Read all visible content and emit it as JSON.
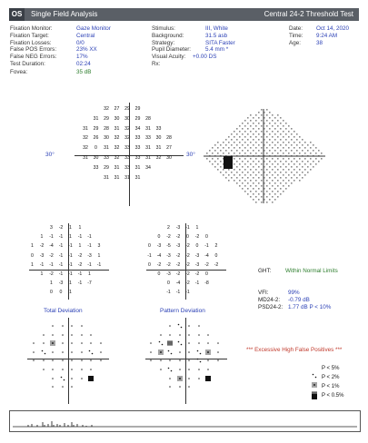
{
  "header": {
    "eye": "OS",
    "analysis": "Single Field Analysis",
    "test": "Central 24-2 Threshold Test"
  },
  "col1": {
    "labels": [
      "Fixation Monitor:",
      "Fixation Target:",
      "Fixation Losses:",
      "False POS Errors:",
      "False NEG Errors:",
      "Test Duration:"
    ],
    "values": [
      "Gaze Monitor",
      "Central",
      "0/0",
      "23% XX",
      "17%",
      "02:24"
    ],
    "fovea_label": "Fovea:",
    "fovea_value": "35 dB"
  },
  "col2": {
    "labels": [
      "Stimulus:",
      "Background:",
      "Strategy:",
      "Pupil Diameter:",
      "Visual Acuity:",
      "Rx:"
    ],
    "values": [
      "III, White",
      "31.5 asb",
      "SITA Faster",
      "5.4 mm *",
      "",
      "+0.00 DS"
    ]
  },
  "col3": {
    "labels": [
      "Date:",
      "Time:",
      "Age:"
    ],
    "values": [
      "Oct 14, 2020",
      "9:24 AM",
      "38"
    ]
  },
  "threshold_rows": [
    [
      "",
      "",
      "",
      "32",
      "27",
      "29",
      "29",
      "",
      "",
      ""
    ],
    [
      "",
      "",
      "31",
      "29",
      "30",
      "30",
      "29",
      "28",
      "",
      ""
    ],
    [
      "",
      "31",
      "29",
      "28",
      "31",
      "32",
      "34",
      "31",
      "33",
      ""
    ],
    [
      "",
      "32",
      "26",
      "30",
      "32",
      "32",
      "33",
      "33",
      "30",
      "28"
    ],
    [
      "",
      "32",
      "0",
      "31",
      "32",
      "33",
      "33",
      "31",
      "31",
      "27"
    ],
    [
      "",
      "31",
      "30",
      "33",
      "32",
      "33",
      "33",
      "31",
      "32",
      "30"
    ],
    [
      "",
      "",
      "33",
      "29",
      "31",
      "33",
      "31",
      "34",
      "",
      ""
    ],
    [
      "",
      "",
      "",
      "31",
      "31",
      "31",
      "31",
      "",
      "",
      ""
    ]
  ],
  "degree_labels": {
    "left": "30°",
    "right": "30°",
    "gray_left": "30°"
  },
  "total_dev_rows": [
    [
      "",
      "",
      "3",
      "-2",
      "1",
      "1",
      "",
      ""
    ],
    [
      "",
      "1",
      "-1",
      "-1",
      "1",
      "-1",
      "-1",
      ""
    ],
    [
      "1",
      "-2",
      "-4",
      "-1",
      "-1",
      "1",
      "-1",
      "3"
    ],
    [
      "0",
      "-3",
      "-2",
      "-1",
      "-1",
      "-2",
      "-3",
      "1"
    ],
    [
      "1",
      "-1",
      "-1",
      "-1",
      "-1",
      "-2",
      "-1",
      "-1"
    ],
    [
      "",
      "1",
      "-2",
      "-1",
      "-1",
      "-1",
      "1",
      ""
    ],
    [
      "",
      "",
      "1",
      "-3",
      "1",
      "-1",
      "-7",
      ""
    ],
    [
      "",
      "",
      "0",
      "0",
      "1",
      "",
      "",
      ""
    ]
  ],
  "pattern_dev_rows": [
    [
      "",
      "",
      "2",
      "-3",
      "-1",
      "1",
      "",
      ""
    ],
    [
      "",
      "0",
      "-2",
      "-2",
      "0",
      "-2",
      "0",
      ""
    ],
    [
      "0",
      "-3",
      "-5",
      "-3",
      "-2",
      "0",
      "-1",
      "2"
    ],
    [
      "-1",
      "-4",
      "-3",
      "-2",
      "-2",
      "-3",
      "-4",
      "0"
    ],
    [
      "0",
      "-2",
      "-2",
      "-2",
      "-2",
      "-3",
      "-2",
      "-2"
    ],
    [
      "",
      "0",
      "-3",
      "-2",
      "-2",
      "-2",
      "0",
      ""
    ],
    [
      "",
      "",
      "0",
      "-4",
      "-2",
      "-1",
      "-8",
      ""
    ],
    [
      "",
      "",
      "-1",
      "-1",
      "-1",
      "",
      "",
      ""
    ]
  ],
  "captions": {
    "total": "Total Deviation",
    "pattern": "Pattern Deviation"
  },
  "indices": {
    "ght_label": "GHT:",
    "ght_value": "Within Normal Limits",
    "vfi_label": "VFI:",
    "vfi_value": "99%",
    "md_label": "MD24-2:",
    "md_value": "-0.79 dB",
    "psd_label": "PSD24-2:",
    "psd_value": "1.77 dB P < 10%"
  },
  "warning": "*** Excessive High False Positives ***",
  "legend": [
    "P < 5%",
    "P < 2%",
    "P < 1%",
    "P < 0.5%"
  ],
  "grayscale_dark_level": 0.85
}
